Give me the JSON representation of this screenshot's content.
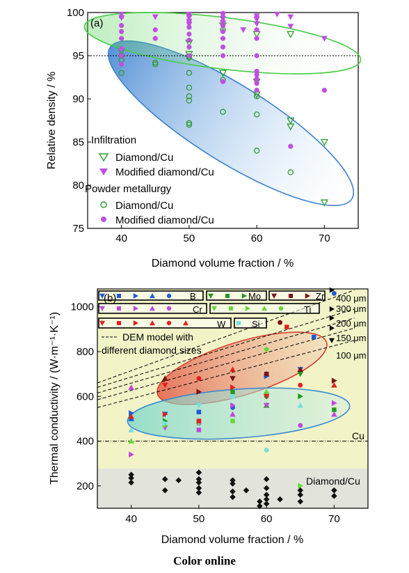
{
  "caption": "Color online",
  "colors": {
    "infil": "#2e9c32",
    "modified": "#c050e0",
    "green_ellipse": "#44cc44",
    "blue_ellipse": "#3a80d0",
    "red_ellipse": "#d84030",
    "cyan_ellipse": "#3a8ad0",
    "B": "#1f5ad8",
    "Mo": "#1f9a1f",
    "Zr": "#7a1414",
    "Cr": "#c048dc",
    "Ti": "#66d83a",
    "W": "#e02020",
    "Si": "#78e0dc",
    "base": "#111111",
    "bg_yellow": "#f2f4c8",
    "bg_grey": "#e2e4dc"
  },
  "chart_data": [
    {
      "type": "scatter",
      "panel_label": "(a)",
      "xlabel": "Diamond volume fraction / %",
      "ylabel": "Relative density / %",
      "xlim": [
        35,
        75
      ],
      "ylim": [
        75,
        100
      ],
      "xticks": [
        40,
        50,
        60,
        70
      ],
      "yticks": [
        75,
        80,
        85,
        90,
        95,
        100
      ],
      "reference_line": 95,
      "legend": {
        "group1": "Infiltration",
        "item1": "Diamond/Cu",
        "item2": "Modified diamond/Cu",
        "group2": "Powder metallurgy",
        "item3": "Diamond/Cu",
        "item4": "Modified diamond/Cu"
      },
      "series": [
        {
          "name": "Infiltration Diamond/Cu",
          "marker": "tri-down-open",
          "points": [
            [
              40,
              95.5
            ],
            [
              50,
              96.5
            ],
            [
              50,
              95.2
            ],
            [
              50,
              94.8
            ],
            [
              55,
              93
            ],
            [
              55,
              98.5
            ],
            [
              60,
              92
            ],
            [
              60,
              90.5
            ],
            [
              60,
              97.5
            ],
            [
              65,
              87.5
            ],
            [
              65,
              86.8
            ],
            [
              65,
              97.5
            ],
            [
              70,
              85
            ],
            [
              70,
              78
            ]
          ]
        },
        {
          "name": "Infiltration Modified diamond/Cu",
          "marker": "tri-down-filled",
          "points": [
            [
              40,
              99.8
            ],
            [
              40,
              99.4
            ],
            [
              45,
              99.5
            ],
            [
              50,
              99.8
            ],
            [
              50,
              99.4
            ],
            [
              50,
              99
            ],
            [
              50,
              98.6
            ],
            [
              55,
              99.8
            ],
            [
              55,
              99.3
            ],
            [
              55,
              98.8
            ],
            [
              58,
              98
            ],
            [
              60,
              99.6
            ],
            [
              60,
              99.2
            ],
            [
              60,
              98.7
            ],
            [
              63,
              99.8
            ],
            [
              65,
              99.5
            ],
            [
              65,
              98.4
            ],
            [
              70,
              97
            ]
          ]
        },
        {
          "name": "Powder metallurgy Diamond/Cu",
          "marker": "circle-open",
          "points": [
            [
              40,
              95
            ],
            [
              40,
              94.5
            ],
            [
              40,
              93
            ],
            [
              45,
              94.2
            ],
            [
              45,
              94
            ],
            [
              50,
              94.8
            ],
            [
              50,
              93
            ],
            [
              50,
              91.3
            ],
            [
              50,
              90.3
            ],
            [
              50,
              89.8
            ],
            [
              50,
              87.2
            ],
            [
              50,
              87
            ],
            [
              55,
              98
            ],
            [
              55,
              92.2
            ],
            [
              55,
              88.5
            ],
            [
              60,
              90.3
            ],
            [
              60,
              88.2
            ],
            [
              60,
              84
            ],
            [
              65,
              81.5
            ]
          ]
        },
        {
          "name": "Powder metallurgy Modified diamond/Cu",
          "marker": "circle-filled",
          "points": [
            [
              40,
              99.5
            ],
            [
              40,
              98.5
            ],
            [
              40,
              97.8
            ],
            [
              40,
              97
            ],
            [
              40,
              95.8
            ],
            [
              40,
              95
            ],
            [
              40,
              94
            ],
            [
              45,
              98
            ],
            [
              45,
              97
            ],
            [
              50,
              99.7
            ],
            [
              50,
              99
            ],
            [
              50,
              98.3
            ],
            [
              50,
              97.5
            ],
            [
              50,
              96.8
            ],
            [
              50,
              96
            ],
            [
              50,
              95
            ],
            [
              55,
              99.9
            ],
            [
              55,
              99.5
            ],
            [
              55,
              99
            ],
            [
              55,
              98.5
            ],
            [
              55,
              97.8
            ],
            [
              55,
              97
            ],
            [
              55,
              96
            ],
            [
              55,
              95
            ],
            [
              55,
              92
            ],
            [
              60,
              99.5
            ],
            [
              60,
              98
            ],
            [
              60,
              97
            ],
            [
              60,
              95
            ],
            [
              60,
              93.2
            ],
            [
              60,
              92.8
            ],
            [
              60,
              92.3
            ],
            [
              60,
              91.8
            ],
            [
              60,
              91
            ],
            [
              65,
              84.5
            ],
            [
              70,
              91
            ]
          ]
        }
      ]
    },
    {
      "type": "scatter",
      "panel_label": "(b)",
      "xlabel": "Diamond volume fraction / %",
      "ylabel": "Thermal conductivity / (W·m⁻¹·K⁻¹)",
      "xlim": [
        35,
        75
      ],
      "ylim": [
        100,
        1080
      ],
      "xticks": [
        40,
        50,
        60,
        70
      ],
      "yticks": [
        200,
        400,
        600,
        800,
        1000
      ],
      "cu_line": 400,
      "annotations": {
        "cu": "Cu",
        "base": "Diamond/Cu",
        "dem_line1": "DEM model with",
        "dem_line2": "different diamond sizes",
        "sizes": [
          "400 μm",
          "300 μm",
          "200 μm",
          "150 μm",
          "100 μm"
        ]
      },
      "legend_elements": [
        "B",
        "Mo",
        "Zr",
        "Cr",
        "Ti",
        "W",
        "Si"
      ],
      "dem_lines": [
        {
          "label": "400 μm",
          "x1": 35,
          "y1": 660,
          "x2": 73,
          "y2": 1075
        },
        {
          "label": "300 μm",
          "x1": 35,
          "y1": 640,
          "x2": 73,
          "y2": 990
        },
        {
          "label": "200 μm",
          "x1": 35,
          "y1": 615,
          "x2": 73,
          "y2": 950
        },
        {
          "label": "150 μm",
          "x1": 35,
          "y1": 585,
          "x2": 73,
          "y2": 905
        },
        {
          "label": "100 μm",
          "x1": 35,
          "y1": 550,
          "x2": 73,
          "y2": 850
        }
      ],
      "series": [
        {
          "name": "B",
          "points": [
            [
              40,
              500
            ],
            [
              40,
              525
            ],
            [
              45,
              520
            ],
            [
              50,
              530
            ],
            [
              55,
              550
            ],
            [
              60,
              700
            ],
            [
              60,
              690
            ],
            [
              65,
              720
            ],
            [
              67,
              865
            ],
            [
              70,
              1060
            ]
          ]
        },
        {
          "name": "Mo",
          "points": [
            [
              40,
              510
            ],
            [
              45,
              490
            ],
            [
              50,
              560
            ],
            [
              55,
              620
            ],
            [
              60,
              600
            ],
            [
              60,
              560
            ],
            [
              65,
              600
            ],
            [
              65,
              700
            ],
            [
              70,
              540
            ]
          ]
        },
        {
          "name": "Zr",
          "points": [
            [
              45,
              680
            ],
            [
              50,
              620
            ],
            [
              55,
              680
            ],
            [
              60,
              700
            ],
            [
              62,
              930
            ],
            [
              65,
              720
            ],
            [
              70,
              670
            ]
          ]
        },
        {
          "name": "Cr",
          "points": [
            [
              40,
              640
            ],
            [
              40,
              340
            ],
            [
              45,
              460
            ],
            [
              50,
              450
            ],
            [
              50,
              480
            ],
            [
              55,
              520
            ],
            [
              55,
              560
            ],
            [
              60,
              560
            ],
            [
              60,
              610
            ],
            [
              65,
              470
            ],
            [
              70,
              520
            ],
            [
              70,
              570
            ]
          ]
        },
        {
          "name": "Ti",
          "points": [
            [
              40,
              400
            ],
            [
              45,
              470
            ],
            [
              50,
              480
            ],
            [
              55,
              490
            ],
            [
              60,
              810
            ],
            [
              60,
              620
            ],
            [
              65,
              200
            ]
          ]
        },
        {
          "name": "W",
          "points": [
            [
              40,
              510
            ],
            [
              45,
              520
            ],
            [
              45,
              650
            ],
            [
              50,
              490
            ],
            [
              50,
              680
            ],
            [
              55,
              720
            ],
            [
              55,
              640
            ],
            [
              60,
              600
            ],
            [
              63,
              910
            ],
            [
              65,
              650
            ],
            [
              70,
              650
            ]
          ]
        },
        {
          "name": "Si",
          "points": [
            [
              40,
              450
            ],
            [
              45,
              480
            ],
            [
              50,
              560
            ],
            [
              55,
              600
            ],
            [
              60,
              360
            ],
            [
              65,
              560
            ]
          ]
        },
        {
          "name": "Diamond/Cu",
          "points": [
            [
              40,
              250
            ],
            [
              40,
              235
            ],
            [
              40,
              215
            ],
            [
              45,
              230
            ],
            [
              45,
              180
            ],
            [
              47,
              225
            ],
            [
              50,
              260
            ],
            [
              50,
              230
            ],
            [
              50,
              215
            ],
            [
              50,
              190
            ],
            [
              50,
              170
            ],
            [
              55,
              225
            ],
            [
              55,
              210
            ],
            [
              55,
              175
            ],
            [
              55,
              150
            ],
            [
              57,
              180
            ],
            [
              59,
              110
            ],
            [
              59,
              130
            ],
            [
              60,
              230
            ],
            [
              60,
              190
            ],
            [
              60,
              160
            ],
            [
              60,
              140
            ],
            [
              60,
              120
            ],
            [
              62,
              140
            ],
            [
              65,
              180
            ],
            [
              65,
              160
            ],
            [
              65,
              130
            ],
            [
              70,
              180
            ],
            [
              70,
              155
            ]
          ]
        }
      ]
    }
  ]
}
